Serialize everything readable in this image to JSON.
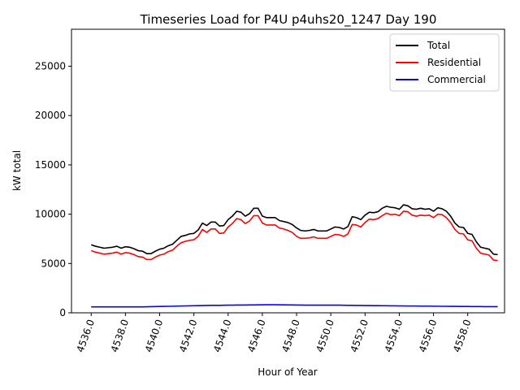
{
  "chart_data": {
    "type": "line",
    "title": "Timeseries Load for P4U p4uhs20_1247  Day 190",
    "xlabel": "Hour of Year",
    "ylabel": "kW total",
    "xlim": [
      4534.85,
      4560.15
    ],
    "ylim": [
      0,
      28750
    ],
    "x_ticks": [
      4536,
      4538,
      4540,
      4542,
      4544,
      4546,
      4548,
      4550,
      4552,
      4554,
      4556,
      4558
    ],
    "x_tick_labels": [
      "4536.0",
      "4538.0",
      "4540.0",
      "4542.0",
      "4544.0",
      "4546.0",
      "4548.0",
      "4550.0",
      "4552.0",
      "4554.0",
      "4556.0",
      "4558.0"
    ],
    "y_ticks": [
      0,
      5000,
      10000,
      15000,
      20000,
      25000
    ],
    "y_tick_labels": [
      "0",
      "5000",
      "10000",
      "15000",
      "20000",
      "25000"
    ],
    "legend_position": "top-right",
    "x": [
      4536.0,
      4536.25,
      4536.5,
      4536.75,
      4537.0,
      4537.25,
      4537.5,
      4537.75,
      4538.0,
      4538.25,
      4538.5,
      4538.75,
      4539.0,
      4539.25,
      4539.5,
      4539.75,
      4540.0,
      4540.25,
      4540.5,
      4540.75,
      4541.0,
      4541.25,
      4541.5,
      4541.75,
      4542.0,
      4542.25,
      4542.5,
      4542.75,
      4543.0,
      4543.25,
      4543.5,
      4543.75,
      4544.0,
      4544.25,
      4544.5,
      4544.75,
      4545.0,
      4545.25,
      4545.5,
      4545.75,
      4546.0,
      4546.25,
      4546.5,
      4546.75,
      4547.0,
      4547.25,
      4547.5,
      4547.75,
      4548.0,
      4548.25,
      4548.5,
      4548.75,
      4549.0,
      4549.25,
      4549.5,
      4549.75,
      4550.0,
      4550.25,
      4550.5,
      4550.75,
      4551.0,
      4551.25,
      4551.5,
      4551.75,
      4552.0,
      4552.25,
      4552.5,
      4552.75,
      4553.0,
      4553.25,
      4553.5,
      4553.75,
      4554.0,
      4554.25,
      4554.5,
      4554.75,
      4555.0,
      4555.25,
      4555.5,
      4555.75,
      4556.0,
      4556.25,
      4556.5,
      4556.75,
      4557.0,
      4557.25,
      4557.5,
      4557.75,
      4558.0,
      4558.25,
      4558.5,
      4558.75,
      4559.0,
      4559.25,
      4559.5,
      4559.75
    ],
    "series": [
      {
        "name": "Total",
        "color": "#000000",
        "values": [
          6900,
          6750,
          6650,
          6550,
          6600,
          6650,
          6750,
          6550,
          6700,
          6650,
          6500,
          6300,
          6250,
          6000,
          6000,
          6250,
          6450,
          6550,
          6800,
          6950,
          7350,
          7750,
          7850,
          8000,
          8050,
          8400,
          9100,
          8850,
          9200,
          9200,
          8800,
          8850,
          9450,
          9800,
          10300,
          10200,
          9800,
          10050,
          10600,
          10600,
          9800,
          9650,
          9650,
          9650,
          9350,
          9250,
          9150,
          8950,
          8600,
          8350,
          8300,
          8350,
          8450,
          8300,
          8300,
          8300,
          8500,
          8700,
          8650,
          8500,
          8750,
          9750,
          9650,
          9450,
          9900,
          10200,
          10150,
          10250,
          10600,
          10800,
          10700,
          10650,
          10500,
          10950,
          10850,
          10550,
          10500,
          10600,
          10500,
          10550,
          10300,
          10650,
          10550,
          10300,
          9800,
          9100,
          8700,
          8650,
          8050,
          7950,
          7200,
          6650,
          6550,
          6450,
          5950,
          5900
        ]
      },
      {
        "name": "Residential",
        "color": "#ff0000",
        "values": [
          6300,
          6150,
          6050,
          5950,
          6000,
          6050,
          6150,
          5950,
          6100,
          6050,
          5900,
          5700,
          5650,
          5400,
          5400,
          5650,
          5850,
          5950,
          6200,
          6350,
          6750,
          7100,
          7250,
          7350,
          7400,
          7750,
          8450,
          8150,
          8500,
          8500,
          8050,
          8100,
          8700,
          9050,
          9550,
          9450,
          9050,
          9300,
          9850,
          9850,
          9100,
          8900,
          8900,
          8900,
          8600,
          8500,
          8350,
          8150,
          7750,
          7550,
          7550,
          7600,
          7700,
          7550,
          7550,
          7550,
          7750,
          7950,
          7900,
          7750,
          8000,
          8950,
          8900,
          8700,
          9150,
          9500,
          9450,
          9550,
          9850,
          10100,
          9950,
          10000,
          9850,
          10300,
          10250,
          9900,
          9800,
          9900,
          9850,
          9900,
          9650,
          10000,
          9950,
          9650,
          9150,
          8450,
          8050,
          8000,
          7400,
          7300,
          6550,
          6050,
          5950,
          5850,
          5350,
          5300
        ]
      },
      {
        "name": "Commercial",
        "color": "#0000ff",
        "values": [
          600,
          600,
          600,
          600,
          600,
          600,
          600,
          600,
          600,
          600,
          600,
          600,
          600,
          610,
          620,
          630,
          640,
          650,
          660,
          670,
          680,
          690,
          700,
          710,
          720,
          730,
          740,
          750,
          760,
          760,
          760,
          770,
          780,
          780,
          790,
          790,
          790,
          800,
          800,
          810,
          810,
          820,
          820,
          820,
          810,
          810,
          800,
          800,
          790,
          790,
          780,
          780,
          780,
          780,
          780,
          780,
          780,
          780,
          780,
          770,
          760,
          760,
          750,
          750,
          740,
          740,
          730,
          730,
          720,
          720,
          710,
          710,
          700,
          700,
          690,
          690,
          690,
          680,
          680,
          680,
          670,
          670,
          660,
          660,
          650,
          650,
          640,
          640,
          640,
          630,
          630,
          630,
          620,
          620,
          620,
          620
        ]
      }
    ]
  }
}
